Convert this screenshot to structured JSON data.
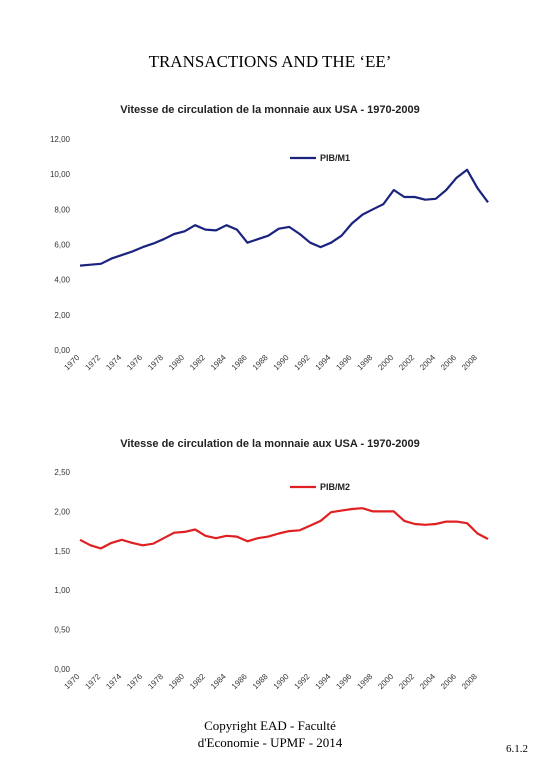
{
  "page": {
    "title": "TRANSACTIONS AND THE ‘EE’",
    "footer_line1": "Copyright EAD - Faculté",
    "footer_line2": "d'Economie - UPMF - 2014",
    "page_number": "6.1.2"
  },
  "chart_data": [
    {
      "type": "line",
      "title": "Vitesse de circulation de la monnaie aux USA - 1970-2009",
      "xlabel": "",
      "ylabel": "",
      "ylim": [
        0,
        12
      ],
      "yticks": [
        "0,00",
        "2,00",
        "4,00",
        "6,00",
        "8,00",
        "10,00",
        "12,00"
      ],
      "xtick_labels": [
        "1970",
        "1972",
        "1974",
        "1976",
        "1978",
        "1980",
        "1982",
        "1984",
        "1986",
        "1988",
        "1990",
        "1992",
        "1994",
        "1996",
        "1998",
        "2000",
        "2002",
        "2004",
        "2006",
        "2008"
      ],
      "grid": false,
      "legend_position": "top-right",
      "color": "#1a237e",
      "series": [
        {
          "name": "PIB/M1",
          "x": [
            1970,
            1971,
            1972,
            1973,
            1974,
            1975,
            1976,
            1977,
            1978,
            1979,
            1980,
            1981,
            1982,
            1983,
            1984,
            1985,
            1986,
            1987,
            1988,
            1989,
            1990,
            1991,
            1992,
            1993,
            1994,
            1995,
            1996,
            1997,
            1998,
            1999,
            2000,
            2001,
            2002,
            2003,
            2004,
            2005,
            2006,
            2007,
            2008,
            2009
          ],
          "values": [
            4.8,
            4.85,
            4.9,
            5.2,
            5.4,
            5.6,
            5.85,
            6.05,
            6.3,
            6.6,
            6.75,
            7.1,
            6.85,
            6.8,
            7.1,
            6.85,
            6.1,
            6.3,
            6.5,
            6.9,
            7.0,
            6.6,
            6.1,
            5.85,
            6.1,
            6.5,
            7.2,
            7.7,
            8.0,
            8.3,
            9.1,
            8.7,
            8.7,
            8.55,
            8.6,
            9.1,
            9.8,
            10.25,
            9.2,
            8.4
          ]
        }
      ]
    },
    {
      "type": "line",
      "title": "Vitesse de circulation de la monnaie aux USA - 1970-2009",
      "xlabel": "",
      "ylabel": "",
      "ylim": [
        0,
        2.5
      ],
      "yticks": [
        "0,00",
        "0,50",
        "1,00",
        "1,50",
        "2,00",
        "2,50"
      ],
      "xtick_labels": [
        "1970",
        "1972",
        "1974",
        "1976",
        "1978",
        "1980",
        "1982",
        "1984",
        "1986",
        "1988",
        "1990",
        "1992",
        "1994",
        "1996",
        "1998",
        "2000",
        "2002",
        "2004",
        "2006",
        "2008"
      ],
      "grid": false,
      "legend_position": "top-right",
      "color": "#e02020",
      "series": [
        {
          "name": "PIB/M2",
          "x": [
            1970,
            1971,
            1972,
            1973,
            1974,
            1975,
            1976,
            1977,
            1978,
            1979,
            1980,
            1981,
            1982,
            1983,
            1984,
            1985,
            1986,
            1987,
            1988,
            1989,
            1990,
            1991,
            1992,
            1993,
            1994,
            1995,
            1996,
            1997,
            1998,
            1999,
            2000,
            2001,
            2002,
            2003,
            2004,
            2005,
            2006,
            2007,
            2008,
            2009
          ],
          "values": [
            1.64,
            1.57,
            1.53,
            1.6,
            1.64,
            1.6,
            1.57,
            1.59,
            1.66,
            1.73,
            1.74,
            1.77,
            1.69,
            1.66,
            1.69,
            1.68,
            1.62,
            1.66,
            1.68,
            1.72,
            1.75,
            1.76,
            1.82,
            1.88,
            1.99,
            2.01,
            2.03,
            2.04,
            2.0,
            2.0,
            2.0,
            1.88,
            1.84,
            1.83,
            1.84,
            1.87,
            1.87,
            1.85,
            1.72,
            1.65
          ]
        }
      ]
    }
  ]
}
